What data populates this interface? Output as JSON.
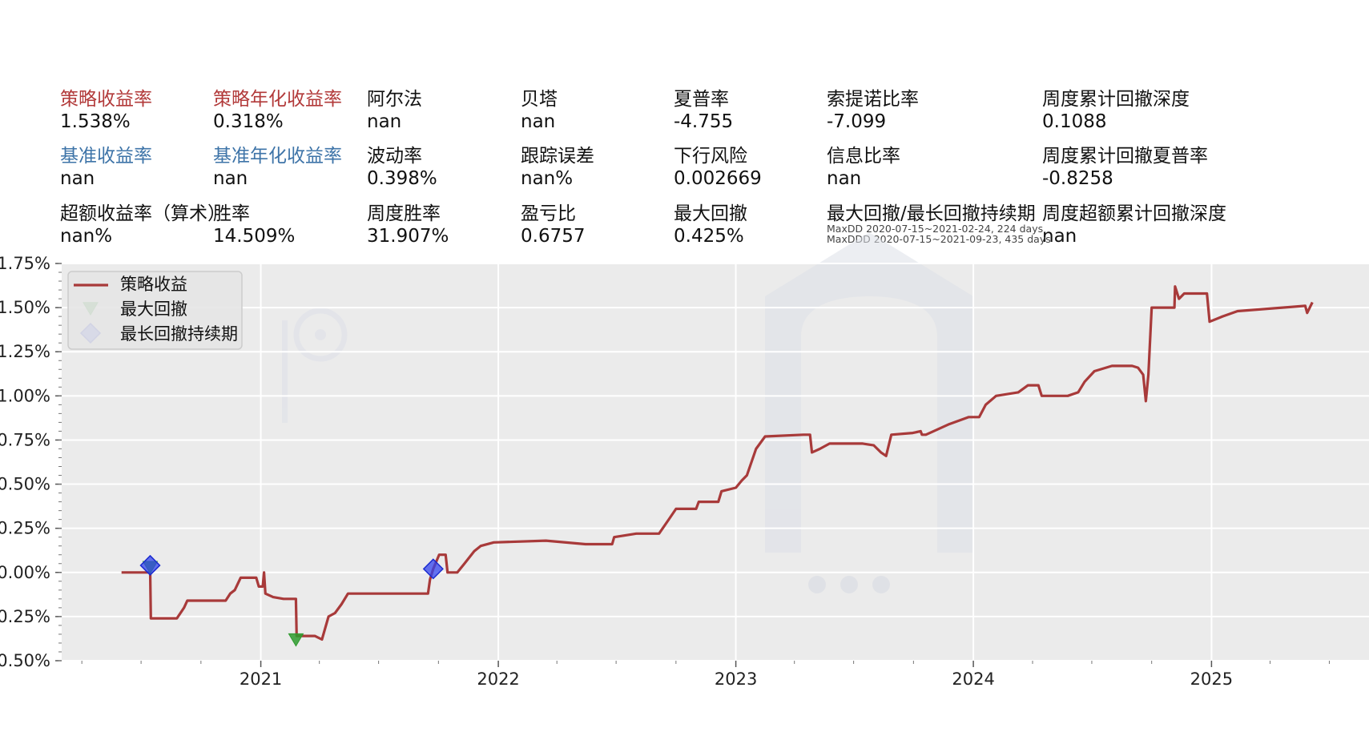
{
  "metrics": [
    {
      "label": "策略收益率",
      "value": "1.538%",
      "color": "red"
    },
    {
      "label": "策略年化收益率",
      "value": "0.318%",
      "color": "red"
    },
    {
      "label": "阿尔法",
      "value": "nan",
      "color": ""
    },
    {
      "label": "贝塔",
      "value": "nan",
      "color": ""
    },
    {
      "label": "夏普率",
      "value": "-4.755",
      "color": ""
    },
    {
      "label": "索提诺比率",
      "value": "-7.099",
      "color": ""
    },
    {
      "label": "周度累计回撤深度",
      "value": "0.1088",
      "color": ""
    },
    {
      "label": "基准收益率",
      "value": "nan",
      "color": "blue"
    },
    {
      "label": "基准年化收益率",
      "value": "nan",
      "color": "blue"
    },
    {
      "label": "波动率",
      "value": "0.398%",
      "color": ""
    },
    {
      "label": "跟踪误差",
      "value": "nan%",
      "color": ""
    },
    {
      "label": "下行风险",
      "value": "0.002669",
      "color": ""
    },
    {
      "label": "信息比率",
      "value": "nan",
      "color": ""
    },
    {
      "label": "周度累计回撤夏普率",
      "value": "-0.8258",
      "color": ""
    },
    {
      "label": "超额收益率（算术）",
      "value": "nan%",
      "color": ""
    },
    {
      "label": "胜率",
      "value": "14.509%",
      "color": ""
    },
    {
      "label": "周度胜率",
      "value": "31.907%",
      "color": ""
    },
    {
      "label": "盈亏比",
      "value": "0.6757",
      "color": ""
    },
    {
      "label": "最大回撤",
      "value": "0.425%",
      "color": ""
    },
    {
      "label": "最大回撤/最长回撤持续期",
      "value": "",
      "color": ""
    },
    {
      "label": "周度超额累计回撤深度",
      "value": "nan",
      "color": ""
    }
  ],
  "drawdown_notes": {
    "maxdd": "MaxDD 2020-07-15~2021-02-24, 224 days",
    "maxddd": "MaxDDD 2020-07-15~2021-09-23, 435 days"
  },
  "chart_data": {
    "type": "line",
    "ylabels": [
      "1.75%",
      "1.50%",
      "1.25%",
      "1.00%",
      "0.75%",
      "0.50%",
      "0.25%",
      "0.00%",
      "0.25%",
      "0.50%"
    ],
    "ylim": [
      -0.5,
      1.75
    ],
    "xlim": [
      "2020-03-01",
      "2025-08-31"
    ],
    "xticks": [
      "2021",
      "2022",
      "2023",
      "2024",
      "2025"
    ],
    "grid": true,
    "legend_position": "top-left",
    "series": [
      {
        "name": "策略收益",
        "color": "#a83a3a",
        "points": [
          [
            "2020-06-01",
            0.0
          ],
          [
            "2020-07-15",
            0.0
          ],
          [
            "2020-07-16",
            -0.26
          ],
          [
            "2020-08-25",
            -0.26
          ],
          [
            "2020-09-05",
            -0.2
          ],
          [
            "2020-09-10",
            -0.16
          ],
          [
            "2020-10-20",
            -0.16
          ],
          [
            "2020-11-08",
            -0.16
          ],
          [
            "2020-11-15",
            -0.12
          ],
          [
            "2020-11-22",
            -0.1
          ],
          [
            "2020-12-01",
            -0.03
          ],
          [
            "2020-12-25",
            -0.03
          ],
          [
            "2020-12-29",
            -0.08
          ],
          [
            "2021-01-04",
            -0.08
          ],
          [
            "2021-01-06",
            0.0
          ],
          [
            "2021-01-08",
            -0.12
          ],
          [
            "2021-01-20",
            -0.14
          ],
          [
            "2021-02-05",
            -0.15
          ],
          [
            "2021-02-24",
            -0.15
          ],
          [
            "2021-02-25",
            -0.36
          ],
          [
            "2021-03-25",
            -0.36
          ],
          [
            "2021-04-05",
            -0.38
          ],
          [
            "2021-04-15",
            -0.25
          ],
          [
            "2021-04-25",
            -0.23
          ],
          [
            "2021-05-05",
            -0.18
          ],
          [
            "2021-05-15",
            -0.12
          ],
          [
            "2021-06-15",
            -0.12
          ],
          [
            "2021-09-15",
            -0.12
          ],
          [
            "2021-09-18",
            -0.04
          ],
          [
            "2021-09-23",
            0.02
          ],
          [
            "2021-10-02",
            0.1
          ],
          [
            "2021-10-12",
            0.1
          ],
          [
            "2021-10-15",
            0.0
          ],
          [
            "2021-10-30",
            0.0
          ],
          [
            "2021-11-10",
            0.05
          ],
          [
            "2021-11-25",
            0.12
          ],
          [
            "2021-12-05",
            0.15
          ],
          [
            "2021-12-25",
            0.17
          ],
          [
            "2022-03-15",
            0.18
          ],
          [
            "2022-05-15",
            0.16
          ],
          [
            "2022-06-25",
            0.16
          ],
          [
            "2022-06-28",
            0.2
          ],
          [
            "2022-08-01",
            0.22
          ],
          [
            "2022-09-05",
            0.22
          ],
          [
            "2022-09-20",
            0.3
          ],
          [
            "2022-10-01",
            0.36
          ],
          [
            "2022-11-01",
            0.36
          ],
          [
            "2022-11-05",
            0.4
          ],
          [
            "2022-12-05",
            0.4
          ],
          [
            "2022-12-10",
            0.46
          ],
          [
            "2023-01-01",
            0.48
          ],
          [
            "2023-01-10",
            0.52
          ],
          [
            "2023-01-18",
            0.55
          ],
          [
            "2023-02-01",
            0.7
          ],
          [
            "2023-02-15",
            0.77
          ],
          [
            "2023-04-15",
            0.78
          ],
          [
            "2023-04-25",
            0.78
          ],
          [
            "2023-04-28",
            0.68
          ],
          [
            "2023-05-10",
            0.7
          ],
          [
            "2023-05-25",
            0.73
          ],
          [
            "2023-07-15",
            0.73
          ],
          [
            "2023-08-01",
            0.72
          ],
          [
            "2023-08-12",
            0.68
          ],
          [
            "2023-08-20",
            0.66
          ],
          [
            "2023-08-28",
            0.78
          ],
          [
            "2023-09-30",
            0.79
          ],
          [
            "2023-10-12",
            0.8
          ],
          [
            "2023-10-14",
            0.78
          ],
          [
            "2023-10-20",
            0.78
          ],
          [
            "2023-11-01",
            0.8
          ],
          [
            "2023-11-25",
            0.84
          ],
          [
            "2023-12-25",
            0.88
          ],
          [
            "2024-01-10",
            0.88
          ],
          [
            "2024-01-20",
            0.95
          ],
          [
            "2024-02-05",
            1.0
          ],
          [
            "2024-03-10",
            1.02
          ],
          [
            "2024-03-25",
            1.06
          ],
          [
            "2024-04-10",
            1.06
          ],
          [
            "2024-04-15",
            1.0
          ],
          [
            "2024-05-25",
            1.0
          ],
          [
            "2024-06-10",
            1.02
          ],
          [
            "2024-06-20",
            1.08
          ],
          [
            "2024-07-05",
            1.14
          ],
          [
            "2024-08-01",
            1.17
          ],
          [
            "2024-09-01",
            1.17
          ],
          [
            "2024-09-10",
            1.16
          ],
          [
            "2024-09-18",
            1.12
          ],
          [
            "2024-09-22",
            0.97
          ],
          [
            "2024-09-26",
            1.12
          ],
          [
            "2024-10-01",
            1.5
          ],
          [
            "2024-11-05",
            1.5
          ],
          [
            "2024-11-06",
            1.62
          ],
          [
            "2024-11-12",
            1.55
          ],
          [
            "2024-11-20",
            1.58
          ],
          [
            "2024-12-25",
            1.58
          ],
          [
            "2024-12-29",
            1.42
          ],
          [
            "2025-01-18",
            1.45
          ],
          [
            "2025-02-10",
            1.48
          ],
          [
            "2025-05-25",
            1.51
          ],
          [
            "2025-05-28",
            1.47
          ],
          [
            "2025-06-05",
            1.53
          ]
        ]
      },
      {
        "name": "最大回撤",
        "marker": "triangle-down",
        "color": "#2e9b2e",
        "points": [
          [
            "2020-07-15",
            0.03
          ],
          [
            "2021-02-24",
            -0.38
          ]
        ]
      },
      {
        "name": "最长回撤持续期",
        "marker": "diamond",
        "color": "#3344ee",
        "points": [
          [
            "2020-07-15",
            0.04
          ],
          [
            "2021-09-23",
            0.02
          ]
        ]
      }
    ]
  }
}
